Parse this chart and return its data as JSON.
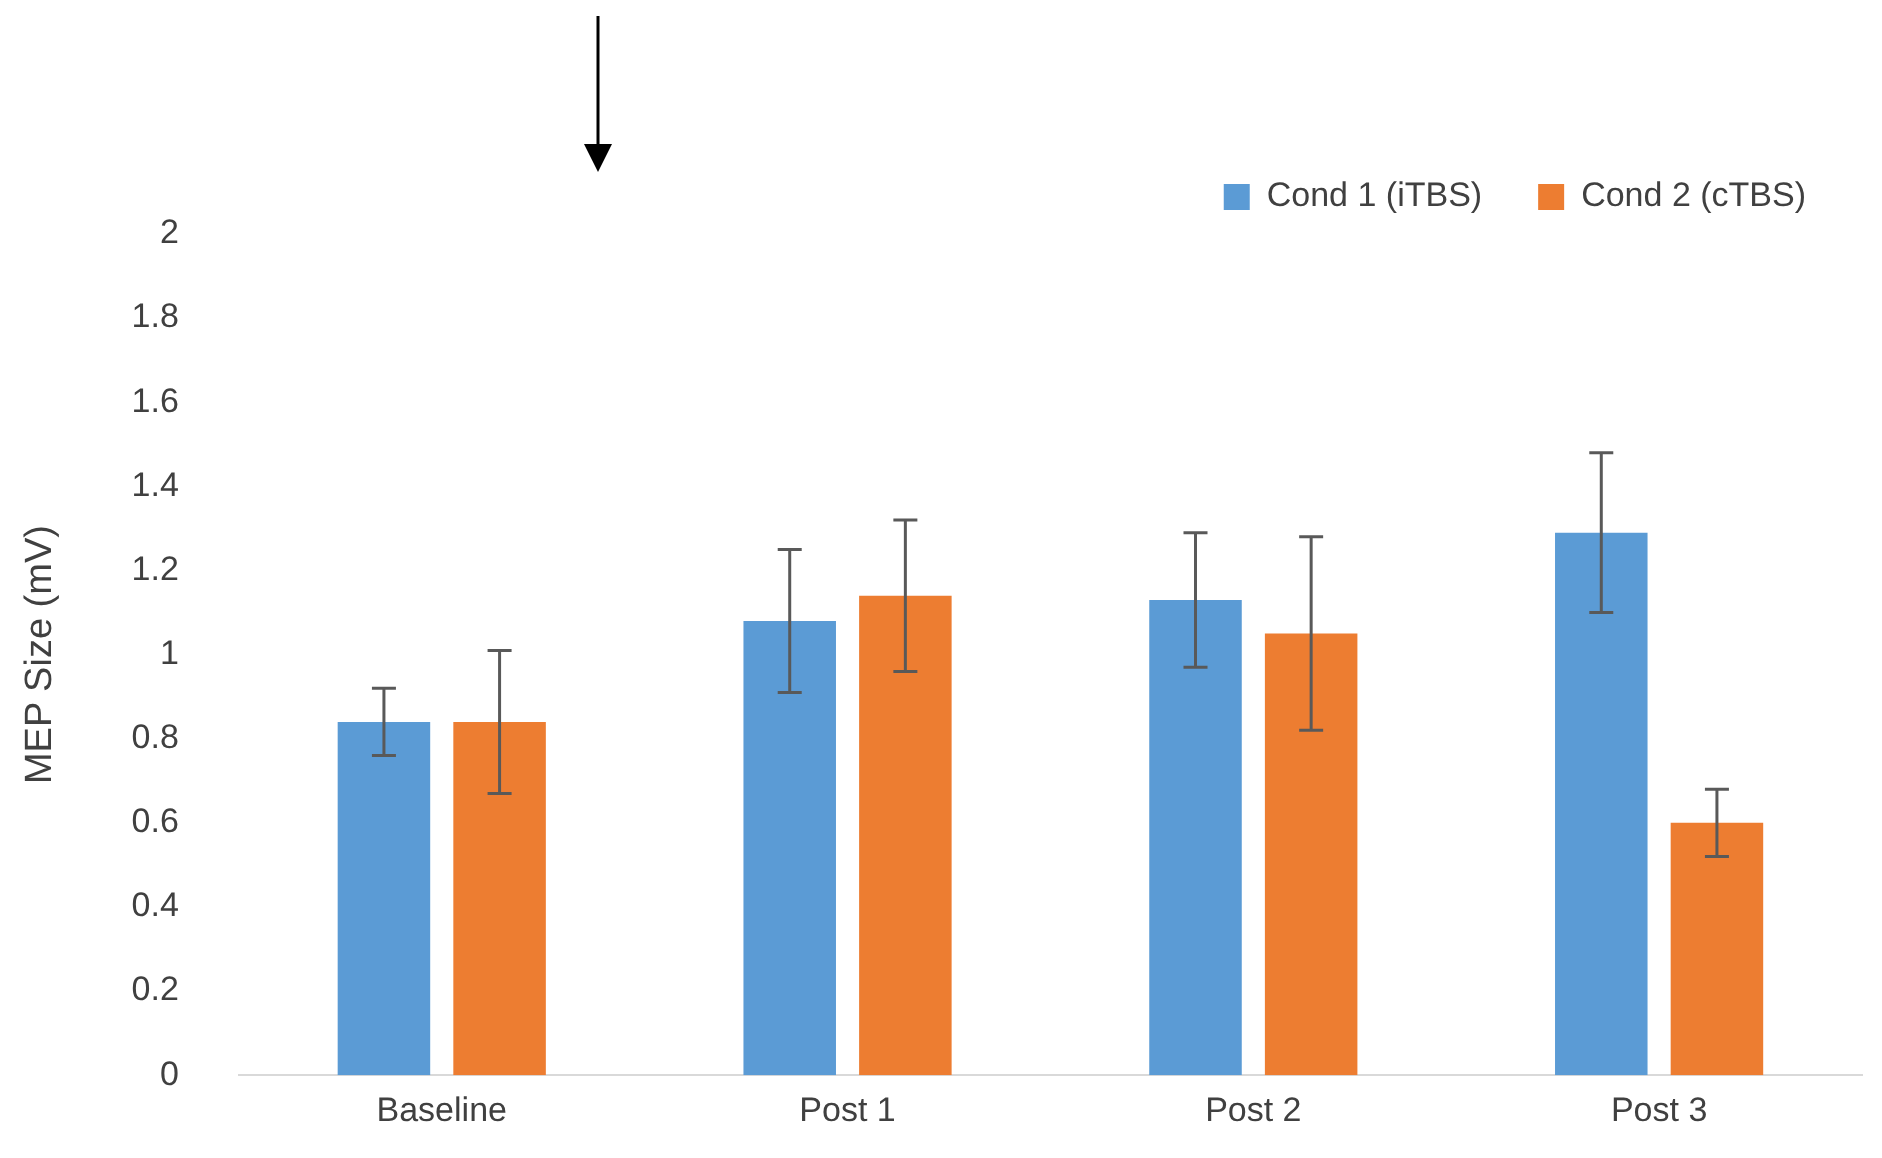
{
  "chart_data": {
    "type": "bar",
    "ylabel": "MEP Size (mV)",
    "categories": [
      "Baseline",
      "Post 1",
      "Post 2",
      "Post 3"
    ],
    "series": [
      {
        "name": "Cond 1 (iTBS)",
        "color": "#5b9bd5",
        "values": [
          0.84,
          1.08,
          1.13,
          1.29
        ],
        "errors": [
          0.08,
          0.17,
          0.16,
          0.19
        ]
      },
      {
        "name": "Cond 2 (cTBS)",
        "color": "#ed7d31",
        "values": [
          0.84,
          1.14,
          1.05,
          0.6
        ],
        "errors": [
          0.17,
          0.18,
          0.23,
          0.08
        ]
      }
    ],
    "ylim": [
      0,
      2
    ],
    "yticks": [
      0,
      0.2,
      0.4,
      0.6,
      0.8,
      1,
      1.2,
      1.4,
      1.6,
      1.8,
      2
    ],
    "grid": false,
    "legend": "top right"
  }
}
